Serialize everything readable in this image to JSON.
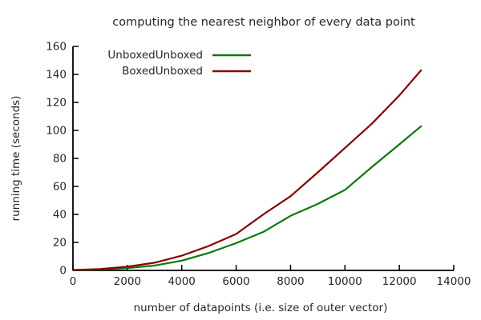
{
  "chart_data": {
    "type": "line",
    "title": "computing the nearest neighbor of every data point",
    "xlabel": "number of datapoints (i.e. size of outer vector)",
    "ylabel": "running time (seconds)",
    "xlim": [
      0,
      14000
    ],
    "ylim": [
      0,
      160
    ],
    "xticks": [
      0,
      2000,
      4000,
      6000,
      8000,
      10000,
      12000,
      14000
    ],
    "yticks": [
      0,
      20,
      40,
      60,
      80,
      100,
      120,
      140,
      160
    ],
    "grid": false,
    "legend_position": "top-left-inside",
    "x": [
      0,
      1000,
      2000,
      3000,
      4000,
      5000,
      6000,
      7000,
      8000,
      9000,
      10000,
      11000,
      12000,
      12800
    ],
    "series": [
      {
        "name": "UnboxedUnboxed",
        "color": "#0a7a0a",
        "values": [
          0.2,
          0.7,
          1.6,
          3.5,
          7,
          12.5,
          19.5,
          27.5,
          39,
          47.5,
          57.5,
          74,
          90,
          103
        ]
      },
      {
        "name": "BoxedUnboxed",
        "color": "#8b0000",
        "values": [
          0.3,
          1.0,
          2.6,
          5.5,
          10.5,
          17.5,
          26,
          40,
          53,
          70,
          87.5,
          105,
          125,
          143
        ]
      }
    ]
  },
  "colors": {
    "axis": "#000000",
    "text": "#262626",
    "background": "#ffffff"
  }
}
